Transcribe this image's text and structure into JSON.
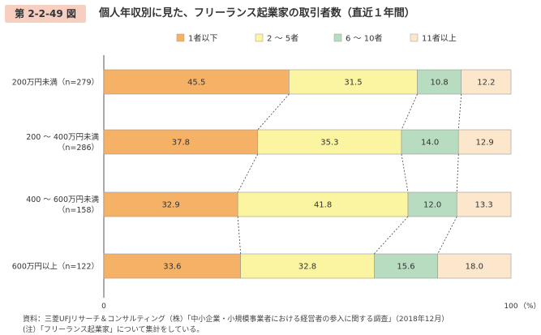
{
  "figure": {
    "number": "第 2-2-49 図",
    "title": "個人年収別に見た、フリーランス起業家の取引者数（直近１年間）"
  },
  "colors": {
    "badge_bg": "#f6cfc0",
    "series": [
      "#f5b266",
      "#fbf4a0",
      "#b8dcc0",
      "#fde7cc"
    ],
    "bar_border": "#999999",
    "connector": "#444444"
  },
  "chart_data": {
    "type": "bar",
    "orientation": "horizontal",
    "stacked": "percent",
    "categories": [
      "200万円未満（n=279）",
      "200 ～ 400万円未満\n（n=286）",
      "400 ～ 600万円未満\n（n=158）",
      "600万円以上（n=122）"
    ],
    "series": [
      {
        "name": "1者以下",
        "values": [
          45.5,
          37.8,
          32.9,
          33.6
        ]
      },
      {
        "name": "2 ～ 5者",
        "values": [
          31.5,
          35.3,
          41.8,
          32.8
        ]
      },
      {
        "name": "6 ～ 10者",
        "values": [
          10.8,
          14.0,
          12.0,
          15.6
        ]
      },
      {
        "name": "11者以上",
        "values": [
          12.2,
          12.9,
          13.3,
          18.0
        ]
      }
    ],
    "xlim": [
      0,
      100
    ],
    "xticks": [
      "0",
      "100"
    ],
    "xunit": "（%）",
    "legend_position": "top-right",
    "connectors": true
  },
  "notes": [
    "資料：三菱UFJリサーチ＆コンサルティング（株）「中小企業・小規模事業者における経営者の参入に関する調査」（2018年12月）",
    "(注）「フリーランス起業家」について集計をしている。"
  ]
}
